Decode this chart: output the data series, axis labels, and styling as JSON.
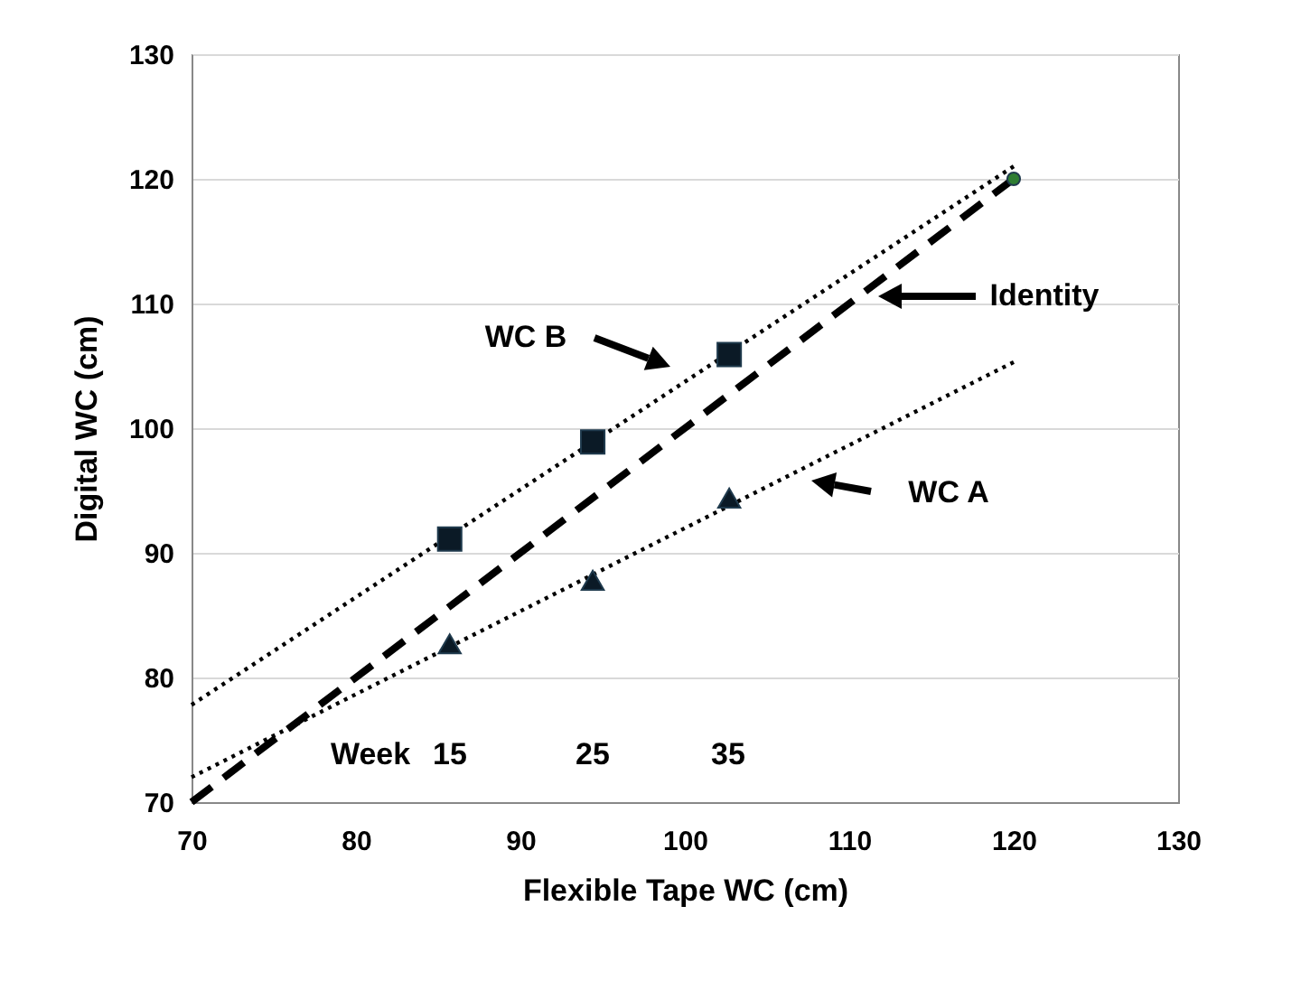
{
  "chart_data": {
    "type": "scatter",
    "xlabel": "Flexible Tape WC (cm)",
    "ylabel": "Digital WC (cm)",
    "xlim": [
      70,
      130
    ],
    "ylim": [
      70,
      130
    ],
    "xticks": [
      70,
      80,
      90,
      100,
      110,
      120,
      130
    ],
    "yticks": [
      70,
      80,
      90,
      100,
      110,
      120,
      130
    ],
    "grid": "y",
    "series": [
      {
        "type": "line",
        "x": [
          70,
          120
        ],
        "values": [
          70,
          120
        ],
        "color": "#000000",
        "line_style": "dashed",
        "marker": "none"
      },
      {
        "type": "line",
        "x": [
          70,
          120
        ],
        "values": [
          77.8,
          121.0
        ],
        "color": "#000000",
        "line_style": "dotted",
        "marker": "none"
      },
      {
        "type": "line",
        "x": [
          70,
          120
        ],
        "values": [
          72.0,
          105.3
        ],
        "color": "#000000",
        "line_style": "dotted",
        "marker": "none"
      },
      {
        "x": [
          85.7,
          94.4,
          102.7
        ],
        "values": [
          91.1,
          98.9,
          105.9
        ],
        "color": "#0b1a26",
        "marker": "square"
      },
      {
        "x": [
          85.7,
          94.4,
          102.7
        ],
        "values": [
          82.7,
          87.8,
          94.4
        ],
        "color": "#0b1a26",
        "marker": "triangle"
      },
      {
        "x": [
          120
        ],
        "values": [
          120
        ],
        "color": "#2e7d32",
        "marker": "circle"
      }
    ],
    "annotations": [
      "Identity",
      "WC B",
      "WC A",
      "Week",
      "15",
      "25",
      "35"
    ]
  }
}
